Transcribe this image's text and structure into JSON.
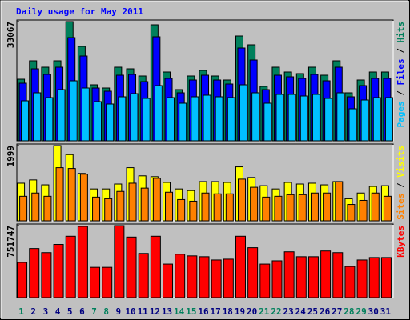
{
  "chart_data": [
    {
      "type": "bar",
      "title": "Daily usage for May 2011",
      "series": [
        {
          "name": "Pages",
          "color": "#00c0ff",
          "values": [
            11096,
            13315,
            11984,
            14203,
            16644,
            14647,
            10874,
            10208,
            12206,
            13093,
            11762,
            15312,
            11984,
            10430,
            12206,
            12649,
            12206,
            11984,
            15534,
            13315,
            10430,
            12871,
            12871,
            12427,
            12871,
            11762,
            13315,
            8877,
            11318,
            11984,
            11984
          ]
        },
        {
          "name": "Files",
          "color": "#0000ff",
          "values": [
            15978,
            19973,
            18419,
            20416,
            28628,
            23523,
            14647,
            13759,
            18198,
            18419,
            16422,
            28850,
            17310,
            13315,
            16866,
            18198,
            16866,
            15756,
            25743,
            22414,
            14203,
            18198,
            17754,
            17310,
            18419,
            16644,
            20416,
            12206,
            15312,
            17310,
            17310
          ]
        },
        {
          "name": "Hits",
          "color": "#00805c",
          "values": [
            17087,
            22192,
            20416,
            22192,
            33067,
            26187,
            15535,
            14647,
            20416,
            19973,
            17976,
            32179,
            19085,
            14203,
            17976,
            19529,
            17976,
            16866,
            29072,
            26631,
            15091,
            20416,
            19085,
            18641,
            20416,
            18198,
            22192,
            13315,
            16866,
            19085,
            19085
          ]
        }
      ],
      "ylim": [
        0,
        33067
      ],
      "yticks": [
        33067
      ],
      "legend_separator": " / "
    },
    {
      "type": "bar",
      "series": [
        {
          "name": "Sites",
          "color": "#ff8000",
          "values": [
            652,
            739,
            652,
            1412,
            1391,
            1239,
            630,
            587,
            782,
            1000,
            869,
            1130,
            760,
            565,
            522,
            739,
            717,
            717,
            1108,
            891,
            630,
            652,
            695,
            695,
            739,
            739,
            1043,
            435,
            543,
            739,
            652
          ]
        },
        {
          "name": "Visits",
          "color": "#ffff00",
          "values": [
            1000,
            1087,
            956,
            1999,
            1760,
            1260,
            847,
            847,
            978,
            1412,
            1195,
            1173,
            1021,
            847,
            804,
            1043,
            1043,
            1021,
            1434,
            1152,
            934,
            847,
            1021,
            978,
            1000,
            956,
            1043,
            587,
            739,
            913,
            934
          ]
        }
      ],
      "ylim": [
        0,
        1999
      ],
      "yticks": [
        1999
      ],
      "legend_separator": " / "
    },
    {
      "type": "bar",
      "series": [
        {
          "name": "KBytes",
          "color": "#ff0000",
          "values": [
            367349,
            512580,
            469865,
            555295,
            640725,
            743241,
            316091,
            316091,
            751747,
            632182,
            461322,
            640725,
            350263,
            452779,
            435693,
            427150,
            392978,
            401521,
            640725,
            521123,
            350263,
            384435,
            478408,
            427150,
            427150,
            486951,
            469865,
            324634,
            392978,
            418607,
            418607
          ]
        }
      ],
      "ylim": [
        0,
        751747
      ],
      "yticks": [
        751747
      ],
      "categories": [
        "1",
        "2",
        "3",
        "4",
        "5",
        "6",
        "7",
        "8",
        "9",
        "10",
        "11",
        "12",
        "13",
        "14",
        "15",
        "16",
        "17",
        "18",
        "19",
        "20",
        "21",
        "22",
        "23",
        "24",
        "25",
        "26",
        "27",
        "28",
        "29",
        "30",
        "31"
      ],
      "category_colors": [
        "#00805c",
        "#000080",
        "#000080",
        "#000080",
        "#000080",
        "#000080",
        "#00805c",
        "#00805c",
        "#000080",
        "#000080",
        "#000080",
        "#000080",
        "#000080",
        "#00805c",
        "#00805c",
        "#000080",
        "#000080",
        "#000080",
        "#000080",
        "#000080",
        "#00805c",
        "#00805c",
        "#000080",
        "#000080",
        "#000080",
        "#000080",
        "#000080",
        "#00805c",
        "#00805c",
        "#000080",
        "#000080"
      ]
    }
  ]
}
